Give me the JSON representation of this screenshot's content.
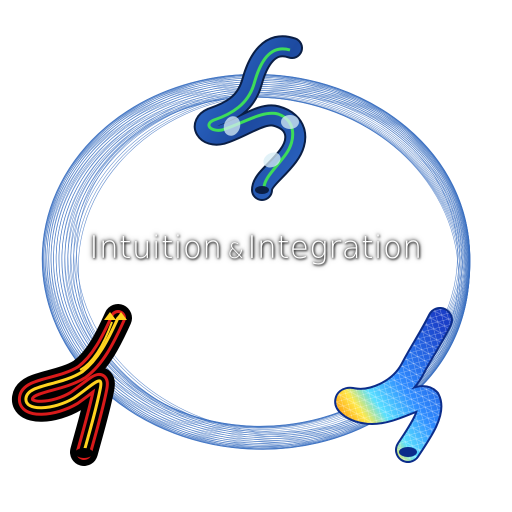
{
  "title": {
    "part1": "Intuition",
    "amp": "&",
    "part2": "Integration"
  },
  "illustrations": [
    {
      "name": "flow-pipe-illustration",
      "colors": [
        "#1f4e99",
        "#39d353",
        "#c8e6f0"
      ]
    },
    {
      "name": "streamline-pipe-illustration",
      "colors": [
        "#000000",
        "#d91a1a",
        "#ffd21f"
      ]
    },
    {
      "name": "mesh-pipe-illustration",
      "colors": [
        "#1a4fd6",
        "#2fb0ff",
        "#ffe94a",
        "#ff3a1a"
      ]
    }
  ],
  "ring_color": "#3a6fc0"
}
